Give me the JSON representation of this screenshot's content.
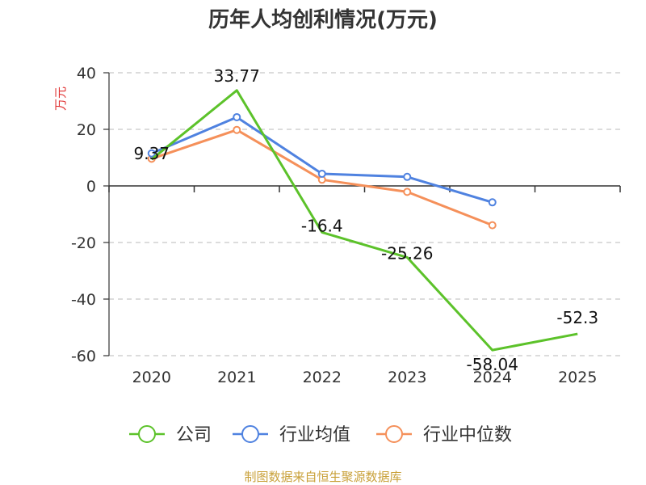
{
  "chart_data": {
    "type": "line",
    "title": "历年人均创利情况(万元)",
    "ylabel": "万元",
    "xlabel": "",
    "categories": [
      "2020",
      "2021",
      "2022",
      "2023",
      "2024",
      "2025"
    ],
    "ylim": [
      -60,
      40
    ],
    "yticks": [
      40,
      20,
      0,
      -20,
      -40,
      -60
    ],
    "grid": true,
    "legend_position": "bottom",
    "series": [
      {
        "name": "公司",
        "color": "#5cc22a",
        "values": [
          9.37,
          33.77,
          -16.4,
          -25.26,
          -58.04,
          -52.3
        ],
        "labels": [
          "9.37",
          "33.77",
          "-16.4",
          "-25.26",
          "-58.04",
          "-52.3"
        ]
      },
      {
        "name": "行业均值",
        "color": "#4f82e0",
        "values": [
          11.5,
          24.3,
          4.3,
          3.2,
          -5.8,
          null
        ]
      },
      {
        "name": "行业中位数",
        "color": "#f5905a",
        "values": [
          9.6,
          19.8,
          2.2,
          -2.1,
          -13.9,
          null
        ]
      }
    ]
  },
  "source": "制图数据来自恒生聚源数据库"
}
